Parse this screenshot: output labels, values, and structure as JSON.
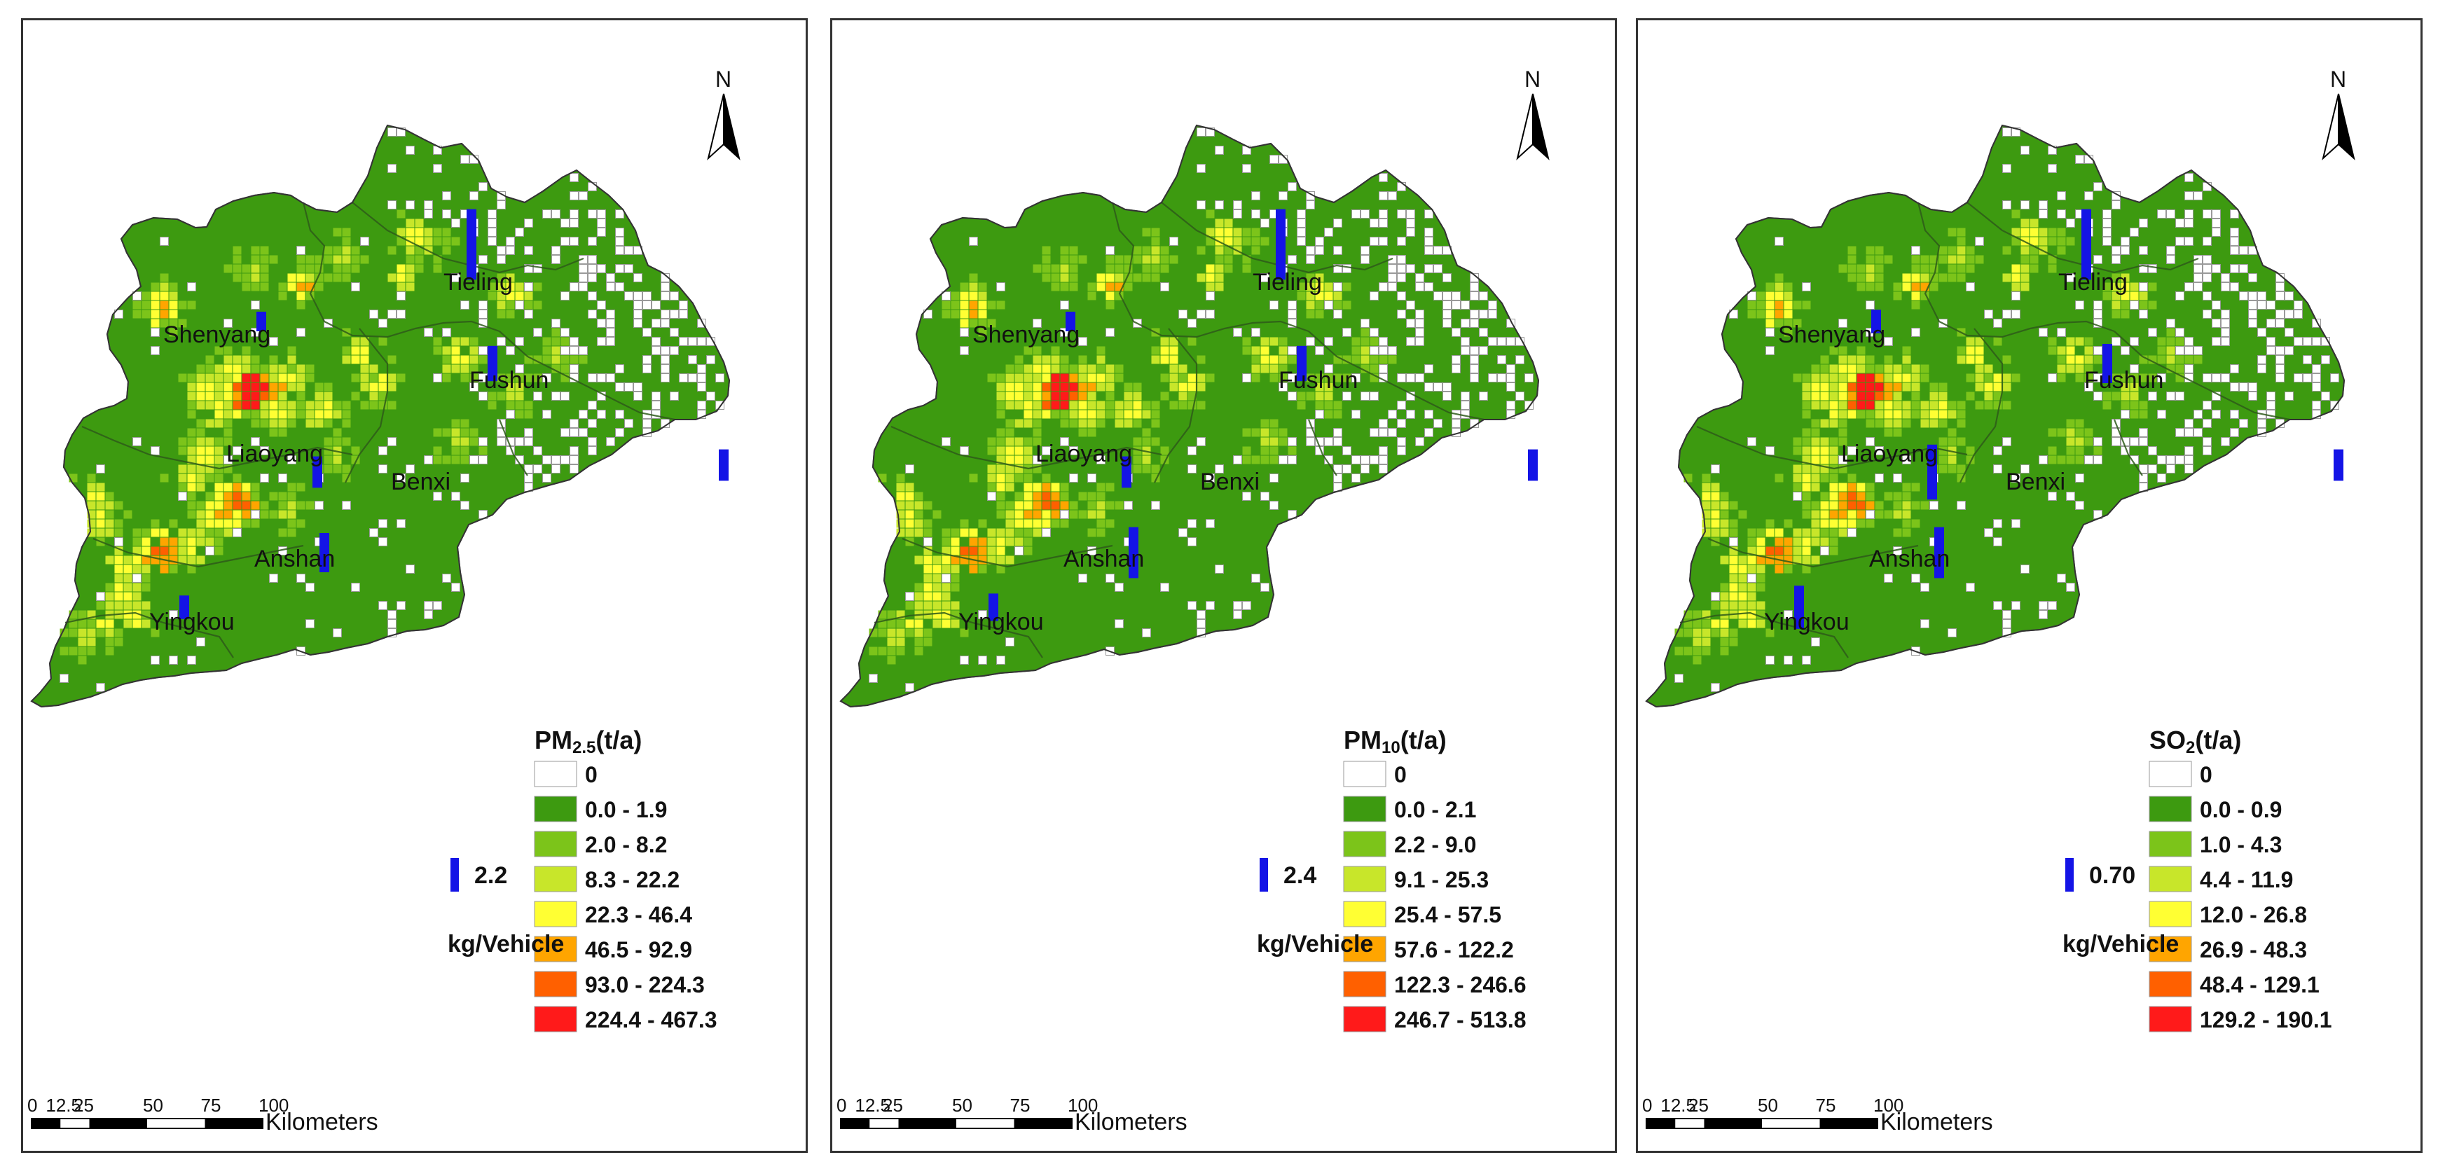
{
  "colors": {
    "zero": "#ffffff",
    "class1": "#3d9a10",
    "class2": "#7cc41a",
    "class3": "#c8e62a",
    "class4": "#ffff33",
    "class5": "#ffa500",
    "class6": "#ff6000",
    "class7": "#ff1a1a",
    "bar": "#1414e6"
  },
  "shared": {
    "north_label": "N",
    "scale_ticks": [
      "0",
      "12.5",
      "25",
      "50",
      "75",
      "100"
    ],
    "scale_unit": "Kilometers",
    "ref_unit": "kg/Vehicle",
    "cities": [
      "Tieling",
      "Shenyang",
      "Fushun",
      "Liaoyang",
      "Benxi",
      "Anshan",
      "Yingkou"
    ]
  },
  "panels": [
    {
      "pollutant": "PM",
      "subscript": "2.5",
      "unit": "(t/a)",
      "ref_value": "2.2",
      "legend": [
        "0",
        "0.0 - 1.9",
        "2.0 - 8.2",
        "8.3 - 22.2",
        "22.3 - 46.4",
        "46.5 - 92.9",
        "93.0 - 224.3",
        "224.4 - 467.3"
      ],
      "bar_heights": {
        "Tieling": 3.6,
        "Shenyang": 1.0,
        "Fushun": 1.8,
        "Liaoyang": 1.6,
        "Benxi": 1.6,
        "Anshan": 2.0,
        "Yingkou": 1.2
      }
    },
    {
      "pollutant": "PM",
      "subscript": "10",
      "unit": "(t/a)",
      "ref_value": "2.4",
      "legend": [
        "0",
        "0.0 - 2.1",
        "2.2 - 9.0",
        "9.1 - 25.3",
        "25.4 - 57.5",
        "57.6 - 122.2",
        "122.3 - 246.6",
        "246.7 - 513.8"
      ],
      "bar_heights": {
        "Tieling": 3.6,
        "Shenyang": 1.0,
        "Fushun": 1.8,
        "Liaoyang": 1.6,
        "Benxi": 1.6,
        "Anshan": 2.6,
        "Yingkou": 1.4
      }
    },
    {
      "pollutant": "SO",
      "subscript": "2",
      "unit": "(t/a)",
      "ref_value": "0.70",
      "legend": [
        "0",
        "0.0 - 0.9",
        "1.0 - 4.3",
        "4.4 - 11.9",
        "12.0 - 26.8",
        "26.9 - 48.3",
        "48.4 - 129.1",
        "129.2 - 190.1"
      ],
      "bar_heights": {
        "Tieling": 3.6,
        "Shenyang": 1.2,
        "Fushun": 2.0,
        "Liaoyang": 2.8,
        "Benxi": 1.6,
        "Anshan": 2.6,
        "Yingkou": 2.2
      }
    }
  ]
}
